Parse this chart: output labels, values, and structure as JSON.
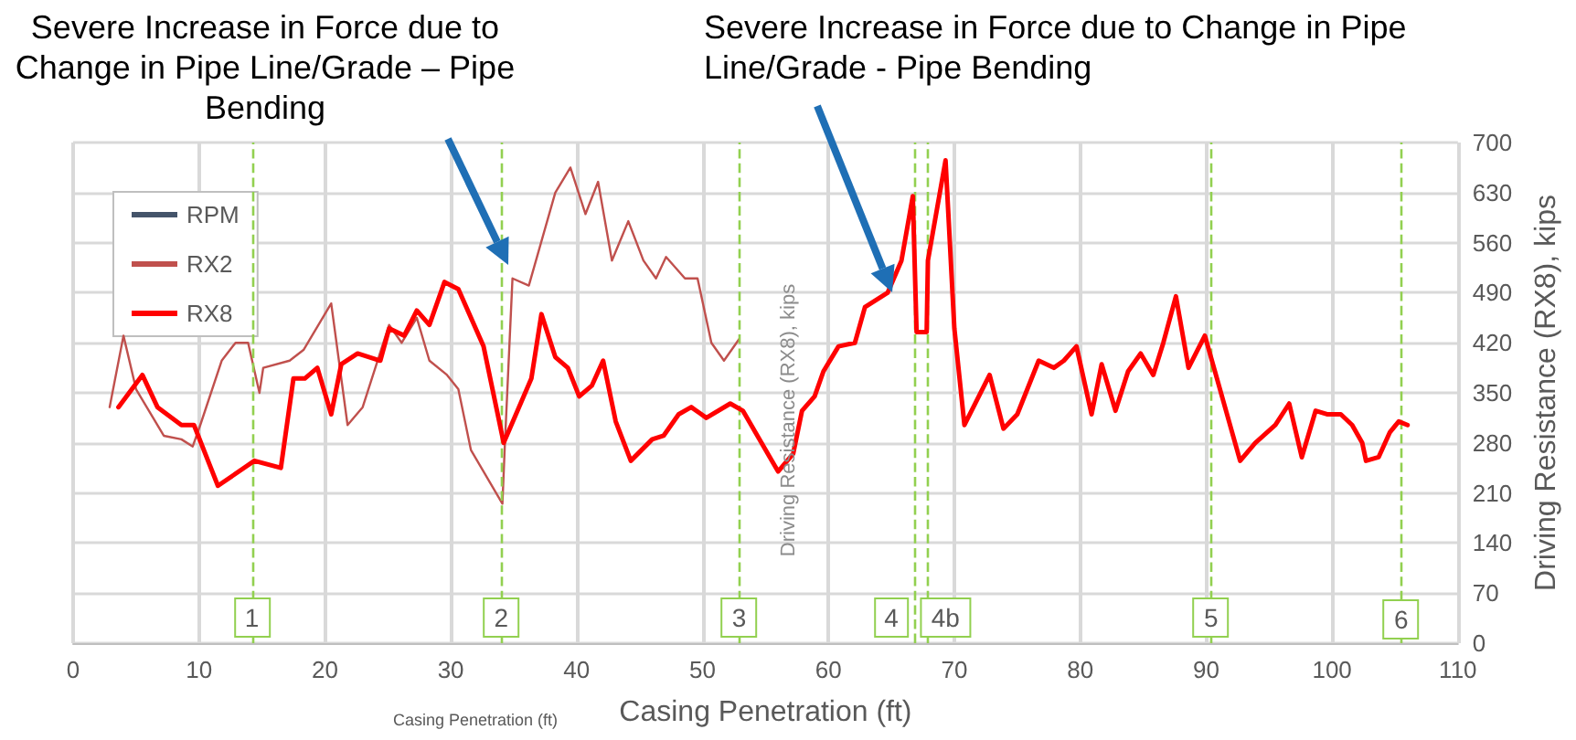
{
  "chart_data": {
    "type": "line",
    "xlabel": "Casing Penetration (ft)",
    "ylabel": "Driving Resistance (RX8), kips",
    "xlim": [
      0,
      110
    ],
    "xticks": [
      0,
      10,
      20,
      30,
      40,
      50,
      60,
      70,
      80,
      90,
      100,
      110
    ],
    "ylim": [
      0,
      700
    ],
    "yticks": [
      0,
      70,
      140,
      210,
      280,
      350,
      420,
      490,
      560,
      630,
      700
    ],
    "grid": true,
    "legend": "top left",
    "marker": "none",
    "series": [
      {
        "name": "RPM",
        "color": "#44546a"
      },
      {
        "name": "RX2",
        "color": "#c0504d",
        "line_style": "solid",
        "x": [
          2.9,
          4.0,
          5.0,
          7.2,
          8.6,
          9.5,
          10.1,
          11.8,
          12.9,
          13.9,
          14.8,
          15.1,
          17.2,
          18.3,
          20.5,
          21.8,
          23.0,
          25.1,
          26.1,
          27.3,
          28.3,
          29.7,
          30.6,
          31.6,
          34.1,
          34.3,
          34.9,
          36.2,
          38.3,
          39.5,
          40.7,
          41.7,
          42.8,
          44.1,
          45.3,
          46.3,
          47.1,
          48.6,
          49.6,
          50.7,
          51.7,
          52.9
        ],
        "values": [
          330,
          430,
          355,
          290,
          285,
          275,
          305,
          395,
          420,
          420,
          350,
          385,
          395,
          410,
          475,
          305,
          330,
          445,
          420,
          455,
          395,
          375,
          355,
          270,
          195,
          280,
          510,
          500,
          630,
          665,
          600,
          645,
          535,
          590,
          535,
          510,
          540,
          510,
          510,
          420,
          395,
          425
        ]
      },
      {
        "name": "RX8",
        "color": "#ff0000",
        "line_style": "solid",
        "x": [
          3.6,
          5.5,
          6.7,
          8.6,
          9.6,
          11.5,
          14.4,
          16.5,
          17.5,
          18.4,
          19.4,
          20.5,
          21.3,
          22.6,
          24.4,
          25.1,
          26.3,
          27.3,
          28.3,
          29.5,
          30.6,
          32.6,
          34.2,
          36.4,
          37.2,
          38.3,
          39.3,
          40.2,
          41.2,
          42.1,
          43.1,
          44.3,
          46.0,
          46.9,
          48.1,
          49.1,
          50.3,
          52.2,
          53.2,
          56.0,
          57.2,
          57.9,
          58.9,
          59.6,
          60.8,
          62.1,
          62.9,
          64.7,
          65.8,
          66.7,
          67.0,
          67.8,
          67.9,
          69.3,
          70.0,
          70.8,
          72.8,
          73.9,
          75.0,
          76.7,
          77.9,
          78.7,
          79.7,
          80.9,
          81.7,
          82.8,
          83.8,
          84.8,
          85.8,
          86.6,
          87.6,
          88.6,
          89.9,
          92.7,
          93.9,
          95.5,
          96.6,
          97.6,
          98.7,
          99.6,
          100.7,
          101.6,
          102.4,
          102.7,
          103.7,
          104.6,
          105.3,
          106.0
        ],
        "values": [
          330,
          375,
          330,
          305,
          305,
          220,
          255,
          245,
          370,
          370,
          385,
          320,
          390,
          405,
          395,
          440,
          430,
          465,
          445,
          505,
          495,
          415,
          280,
          370,
          460,
          400,
          385,
          345,
          360,
          395,
          310,
          255,
          285,
          290,
          320,
          330,
          315,
          335,
          325,
          240,
          265,
          325,
          345,
          380,
          415,
          420,
          470,
          490,
          535,
          625,
          435,
          435,
          535,
          675,
          440,
          305,
          375,
          300,
          320,
          395,
          385,
          395,
          415,
          320,
          390,
          325,
          380,
          405,
          375,
          420,
          485,
          385,
          430,
          255,
          280,
          305,
          335,
          260,
          325,
          320,
          320,
          305,
          280,
          255,
          260,
          295,
          310,
          305
        ]
      }
    ],
    "ref_lines": [
      {
        "axis": "x",
        "value": 14.2,
        "color": "#92d050",
        "line_style": "dashed"
      },
      {
        "axis": "x",
        "value": 34,
        "color": "#92d050",
        "line_style": "dashed"
      },
      {
        "axis": "x",
        "value": 52.9,
        "color": "#92d050",
        "line_style": "dashed"
      },
      {
        "axis": "x",
        "value": 66.8,
        "color": "#92d050",
        "line_style": "dashed"
      },
      {
        "axis": "x",
        "value": 67.8,
        "color": "#92d050",
        "line_style": "dashed"
      },
      {
        "axis": "x",
        "value": 90.4,
        "color": "#92d050",
        "line_style": "dashed"
      },
      {
        "axis": "x",
        "value": 105.5,
        "color": "#92d050",
        "line_style": "dashed"
      }
    ],
    "annotations": [
      "Severe Increase in Force due to Change in Pipe Line/Grade – Pipe Bending",
      "Severe Increase in Force due to Change in Pipe Line/Grade - Pipe Bending",
      "Casing Penetration (ft)",
      "Driving Resistance (RX8), kips",
      {
        "text": "1",
        "x": 14.2,
        "y": 35
      },
      {
        "text": "2",
        "x": 34,
        "y": 35
      },
      {
        "text": "3",
        "x": 52.9,
        "y": 35
      },
      {
        "text": "4",
        "x": 65,
        "y": 35
      },
      {
        "text": "4b",
        "x": 69.3,
        "y": 35
      },
      {
        "text": "5",
        "x": 90.4,
        "y": 36
      },
      {
        "text": "6",
        "x": 105.5,
        "y": 33
      }
    ]
  }
}
